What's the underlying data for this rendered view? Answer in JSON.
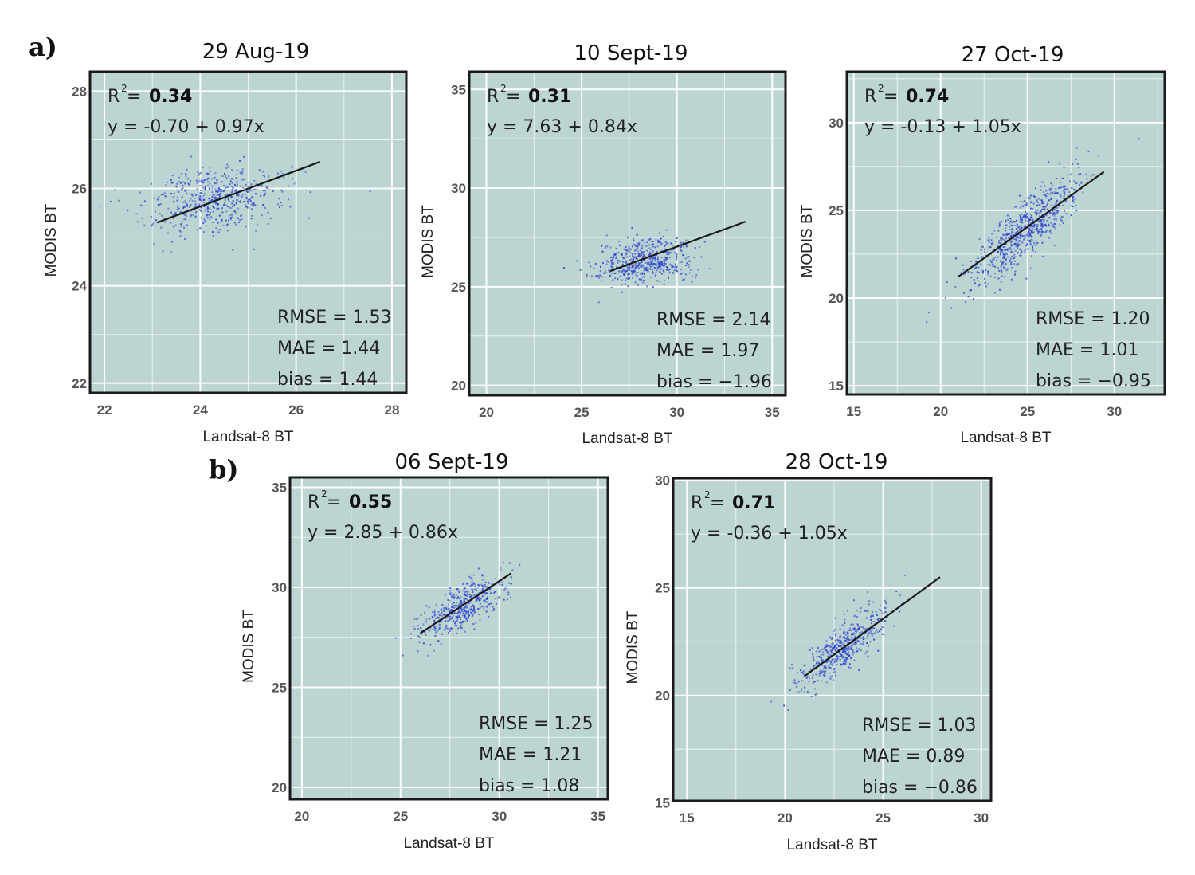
{
  "figure": {
    "panel_labels": [
      "a)",
      "b)"
    ],
    "r2_prefix": "R",
    "r2_sup": "2",
    "r2_eq": " = ",
    "colors": {
      "panel_bg": "#bcd5d2",
      "grid": "#ffffff",
      "point": "#2a3fd0",
      "line": "#1a1a1a",
      "border": "#1a1a1a"
    }
  },
  "chart_data": [
    {
      "type": "scatter",
      "group": "a",
      "title": "29 Aug-19",
      "xlabel": "Landsat-8 BT",
      "ylabel": "MODIS BT",
      "xlim": [
        21.7,
        28.3
      ],
      "ylim": [
        21.8,
        28.4
      ],
      "xticks": [
        22,
        24,
        26,
        28
      ],
      "yticks": [
        22,
        24,
        26,
        28
      ],
      "r2": "0.34",
      "equation": "y = -0.70 + 0.97x",
      "intercept": -0.7,
      "slope": 0.97,
      "fit_x": [
        23.1,
        26.5
      ],
      "fit_y": [
        25.3,
        26.55
      ],
      "cluster": {
        "cx": 24.2,
        "cy": 25.8,
        "sx": 0.7,
        "sy": 0.35,
        "n": 520
      },
      "stats": [
        "RMSE = 1.53",
        "MAE = 1.44",
        "bias = 1.44"
      ]
    },
    {
      "type": "scatter",
      "group": "a",
      "title": "10 Sept-19",
      "xlabel": "Landsat-8 BT",
      "ylabel": "MODIS BT",
      "xlim": [
        19.1,
        35.7
      ],
      "ylim": [
        19.5,
        35.9
      ],
      "xticks": [
        20,
        25,
        30,
        35
      ],
      "yticks": [
        20,
        25,
        30,
        35
      ],
      "r2": "0.31",
      "equation": "y = 7.63 + 0.84x",
      "intercept": 7.63,
      "slope": 0.84,
      "fit_x": [
        26.5,
        33.6
      ],
      "fit_y": [
        25.8,
        28.3
      ],
      "cluster": {
        "cx": 28.2,
        "cy": 26.3,
        "sx": 1.3,
        "sy": 0.6,
        "n": 520
      },
      "stats": [
        "RMSE = 2.14",
        "MAE = 1.97",
        "bias = −1.96"
      ]
    },
    {
      "type": "scatter",
      "group": "a",
      "title": "27 Oct-19",
      "xlabel": "Landsat-8 BT",
      "ylabel": "MODIS BT",
      "xlim": [
        14.6,
        32.9
      ],
      "ylim": [
        14.5,
        32.9
      ],
      "xticks": [
        15,
        20,
        25,
        30
      ],
      "yticks": [
        15,
        20,
        25,
        30
      ],
      "r2": "0.74",
      "equation": "y = -0.13 + 1.05x",
      "intercept": -0.13,
      "slope": 1.05,
      "fit_x": [
        21.0,
        29.4
      ],
      "fit_y": [
        21.2,
        27.2
      ],
      "cluster": {
        "cx": 24.8,
        "cy": 23.9,
        "sx": 1.6,
        "sy": 1.6,
        "corr": 0.85,
        "n": 700
      },
      "stats": [
        "RMSE = 1.20",
        "MAE = 1.01",
        "bias = −0.95"
      ]
    },
    {
      "type": "scatter",
      "group": "b",
      "title": "06 Sept-19",
      "xlabel": "Landsat-8 BT",
      "ylabel": "MODIS BT",
      "xlim": [
        19.4,
        35.5
      ],
      "ylim": [
        19.4,
        35.5
      ],
      "xticks": [
        20,
        25,
        30,
        35
      ],
      "yticks": [
        20,
        25,
        30,
        35
      ],
      "r2": "0.55",
      "equation": "y = 2.85 + 0.86x",
      "intercept": 2.85,
      "slope": 0.86,
      "fit_x": [
        26.0,
        30.6
      ],
      "fit_y": [
        27.7,
        30.7
      ],
      "cluster": {
        "cx": 28.0,
        "cy": 29.0,
        "sx": 1.1,
        "sy": 0.8,
        "corr": 0.75,
        "n": 450
      },
      "stats": [
        "RMSE = 1.25",
        "MAE = 1.21",
        "bias = 1.08"
      ]
    },
    {
      "type": "scatter",
      "group": "b",
      "title": "28 Oct-19",
      "xlabel": "Landsat-8 BT",
      "ylabel": "MODIS BT",
      "xlim": [
        14.3,
        30.5
      ],
      "ylim": [
        15.1,
        30.1
      ],
      "xticks": [
        15,
        20,
        25,
        30
      ],
      "yticks": [
        15,
        20,
        25,
        30
      ],
      "r2": "0.71",
      "equation": "y = -0.36 + 1.05x",
      "intercept": -0.36,
      "slope": 1.05,
      "fit_x": [
        21.0,
        27.9
      ],
      "fit_y": [
        20.9,
        25.5
      ],
      "cluster": {
        "cx": 23.0,
        "cy": 22.3,
        "sx": 1.2,
        "sy": 0.95,
        "corr": 0.8,
        "n": 480
      },
      "stats": [
        "RMSE = 1.03",
        "MAE = 0.89",
        "bias = −0.86"
      ]
    }
  ]
}
